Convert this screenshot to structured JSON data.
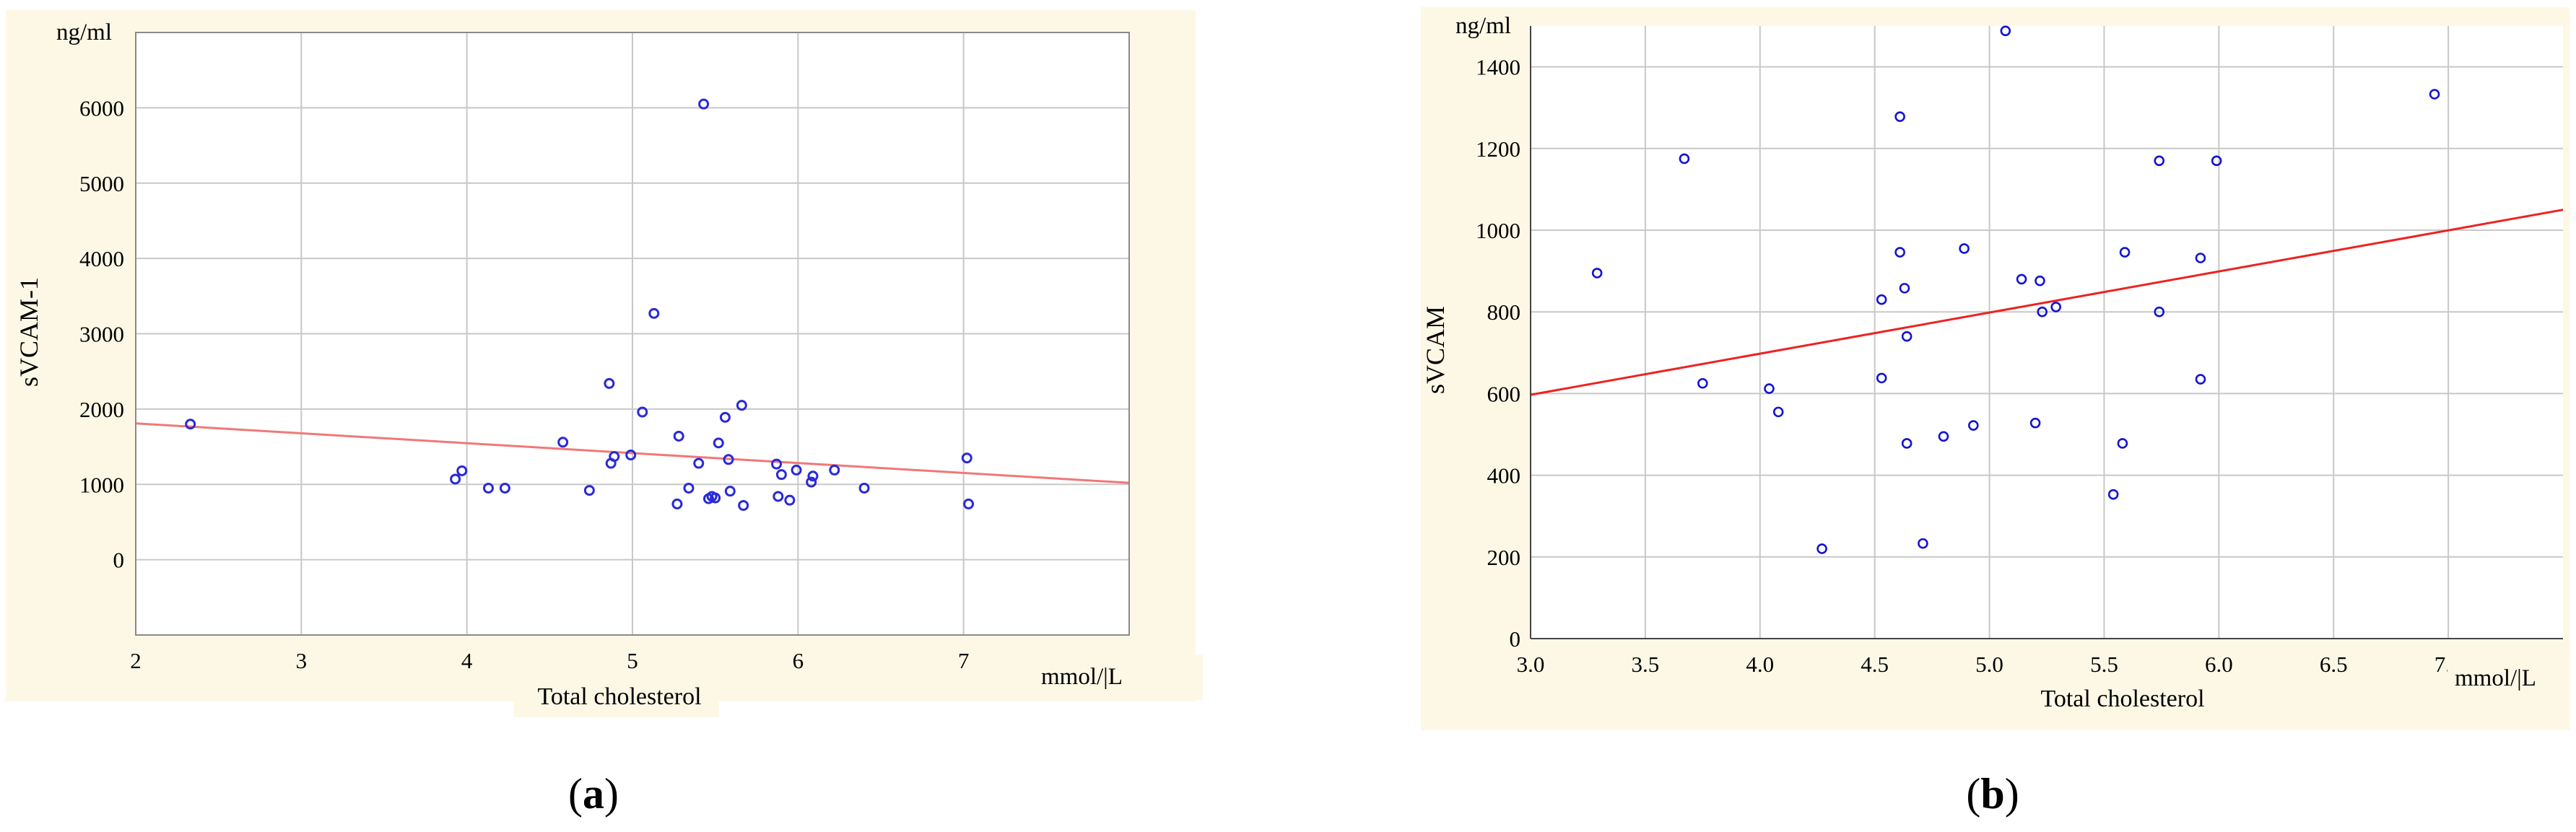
{
  "chart_data": [
    {
      "type": "scatter",
      "panel_label": "(a)",
      "unit_y": "ng/ml",
      "unit_x": "mmol/|L",
      "xlabel": "Total cholesterol",
      "ylabel": "sVCAM-1",
      "xlim": [
        2,
        8
      ],
      "ylim": [
        -1000,
        7000
      ],
      "x_ticks": [
        2,
        3,
        4,
        5,
        6,
        7
      ],
      "y_ticks": [
        0,
        1000,
        2000,
        3000,
        4000,
        5000,
        6000
      ],
      "grid": true,
      "colors": {
        "points": "#2a2ad8",
        "fit_line": "#f07878",
        "plot_bg": "#ffffff",
        "frame_bg": "#fdf8e6"
      },
      "points": [
        {
          "x": 2.33,
          "y": 1800
        },
        {
          "x": 3.93,
          "y": 1070
        },
        {
          "x": 3.97,
          "y": 1180
        },
        {
          "x": 4.13,
          "y": 950
        },
        {
          "x": 4.23,
          "y": 950
        },
        {
          "x": 4.58,
          "y": 1560
        },
        {
          "x": 4.74,
          "y": 920
        },
        {
          "x": 4.86,
          "y": 2340
        },
        {
          "x": 4.87,
          "y": 1280
        },
        {
          "x": 4.89,
          "y": 1370
        },
        {
          "x": 4.99,
          "y": 1390
        },
        {
          "x": 5.06,
          "y": 1960
        },
        {
          "x": 5.13,
          "y": 3270
        },
        {
          "x": 5.27,
          "y": 740
        },
        {
          "x": 5.28,
          "y": 1640
        },
        {
          "x": 5.34,
          "y": 950
        },
        {
          "x": 5.4,
          "y": 1280
        },
        {
          "x": 5.43,
          "y": 6050
        },
        {
          "x": 5.46,
          "y": 810
        },
        {
          "x": 5.48,
          "y": 840
        },
        {
          "x": 5.5,
          "y": 820
        },
        {
          "x": 5.52,
          "y": 1550
        },
        {
          "x": 5.56,
          "y": 1890
        },
        {
          "x": 5.58,
          "y": 1330
        },
        {
          "x": 5.59,
          "y": 910
        },
        {
          "x": 5.66,
          "y": 2050
        },
        {
          "x": 5.67,
          "y": 720
        },
        {
          "x": 5.87,
          "y": 1270
        },
        {
          "x": 5.88,
          "y": 840
        },
        {
          "x": 5.9,
          "y": 1130
        },
        {
          "x": 5.95,
          "y": 790
        },
        {
          "x": 5.99,
          "y": 1190
        },
        {
          "x": 6.08,
          "y": 1030
        },
        {
          "x": 6.09,
          "y": 1110
        },
        {
          "x": 6.22,
          "y": 1190
        },
        {
          "x": 6.4,
          "y": 950
        },
        {
          "x": 7.02,
          "y": 1350
        },
        {
          "x": 7.03,
          "y": 740
        }
      ],
      "fit_line": {
        "x": [
          2.0,
          8.0
        ],
        "y": [
          1810,
          1020
        ]
      }
    },
    {
      "type": "scatter",
      "panel_label": "(b)",
      "unit_y": "ng/ml",
      "unit_x": "mmol/|L",
      "xlabel": "Total cholesterol",
      "ylabel": "sVCAM",
      "xlim": [
        3.0,
        7.5
      ],
      "ylim": [
        0,
        1500
      ],
      "x_ticks": [
        "3.0",
        "3.5",
        "4.0",
        "4.5",
        "5.0",
        "5.5",
        "6.0",
        "6.5",
        "7.0"
      ],
      "y_ticks": [
        "0",
        "200",
        "400",
        "600",
        "800",
        "1000",
        "1200",
        "1400"
      ],
      "grid": true,
      "colors": {
        "points": "#1414d2",
        "fit_line": "#ee2222",
        "plot_bg": "#ffffff",
        "frame_bg": "#fdf8e6"
      },
      "points": [
        {
          "x": 3.29,
          "y": 895
        },
        {
          "x": 3.67,
          "y": 1175
        },
        {
          "x": 3.75,
          "y": 625
        },
        {
          "x": 4.04,
          "y": 612
        },
        {
          "x": 4.08,
          "y": 555
        },
        {
          "x": 4.27,
          "y": 220
        },
        {
          "x": 4.53,
          "y": 830
        },
        {
          "x": 4.53,
          "y": 638
        },
        {
          "x": 4.61,
          "y": 1278
        },
        {
          "x": 4.61,
          "y": 946
        },
        {
          "x": 4.63,
          "y": 858
        },
        {
          "x": 4.64,
          "y": 740
        },
        {
          "x": 4.64,
          "y": 478
        },
        {
          "x": 4.71,
          "y": 233
        },
        {
          "x": 4.8,
          "y": 495
        },
        {
          "x": 4.89,
          "y": 955
        },
        {
          "x": 4.93,
          "y": 522
        },
        {
          "x": 5.07,
          "y": 1488
        },
        {
          "x": 5.14,
          "y": 880
        },
        {
          "x": 5.2,
          "y": 528
        },
        {
          "x": 5.22,
          "y": 876
        },
        {
          "x": 5.23,
          "y": 800
        },
        {
          "x": 5.29,
          "y": 812
        },
        {
          "x": 5.54,
          "y": 353
        },
        {
          "x": 5.59,
          "y": 946
        },
        {
          "x": 5.58,
          "y": 478
        },
        {
          "x": 5.74,
          "y": 1170
        },
        {
          "x": 5.74,
          "y": 800
        },
        {
          "x": 5.92,
          "y": 932
        },
        {
          "x": 5.92,
          "y": 635
        },
        {
          "x": 5.99,
          "y": 1170
        },
        {
          "x": 6.94,
          "y": 1333
        }
      ],
      "fit_line": {
        "x": [
          3.0,
          7.5
        ],
        "y": [
          597,
          1050
        ]
      }
    }
  ]
}
